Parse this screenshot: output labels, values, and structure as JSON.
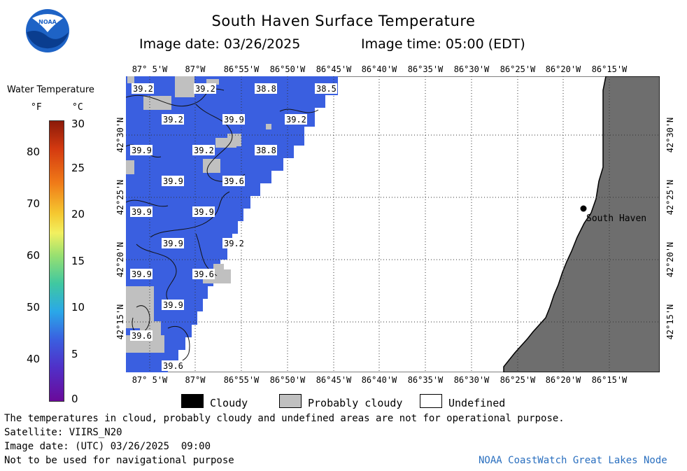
{
  "header": {
    "title": "South Haven Surface Temperature",
    "image_date": "Image date: 03/26/2025",
    "image_time": "Image time: 05:00 (EDT)"
  },
  "colorbar": {
    "title": "Water Temperature",
    "unit_f": "°F",
    "unit_c": "°C",
    "f_ticks": [
      "80",
      "70",
      "60",
      "50",
      "40"
    ],
    "c_ticks": [
      "30",
      "25",
      "20",
      "15",
      "10",
      "5",
      "0"
    ]
  },
  "map": {
    "lon_labels": [
      "87° 5'W",
      "87°W",
      "86°55'W",
      "86°50'W",
      "86°45'W",
      "86°40'W",
      "86°35'W",
      "86°30'W",
      "86°25'W",
      "86°20'W",
      "86°15'W"
    ],
    "lat_labels": [
      "42°30'N",
      "42°25'N",
      "42°20'N",
      "42°15'N"
    ],
    "city": "South Haven",
    "water_color": "#3a5fe0",
    "cloud_color": "#c0c0c0",
    "land_color": "#6e6e6e",
    "temps": [
      {
        "text": "39.2"
      },
      {
        "text": "39.2"
      },
      {
        "text": "38.8"
      },
      {
        "text": "38.5"
      },
      {
        "text": "39.2"
      },
      {
        "text": "39.9"
      },
      {
        "text": "39.2"
      },
      {
        "text": "39.9"
      },
      {
        "text": "39.2"
      },
      {
        "text": "38.8"
      },
      {
        "text": "39.9"
      },
      {
        "text": "39.6"
      },
      {
        "text": "39.9"
      },
      {
        "text": "39.9"
      },
      {
        "text": "39.9"
      },
      {
        "text": "39.2"
      },
      {
        "text": "39.9"
      },
      {
        "text": "39.6"
      },
      {
        "text": "39.9"
      },
      {
        "text": "39.6"
      },
      {
        "text": "39.6"
      }
    ]
  },
  "legend": {
    "cloudy": "Cloudy",
    "probably_cloudy": "Probably cloudy",
    "undefined": "Undefined"
  },
  "footer": {
    "disclaimer": "The temperatures in cloud, probably cloudy and undefined areas are not for operational purpose.",
    "satellite": "Satellite: VIIRS_N20",
    "utc_date": "Image date: (UTC) 03/26/2025  09:00",
    "nav": "Not to be used for navigational purpose",
    "credit": "NOAA CoastWatch Great Lakes Node"
  },
  "logo_text": "NOAA"
}
